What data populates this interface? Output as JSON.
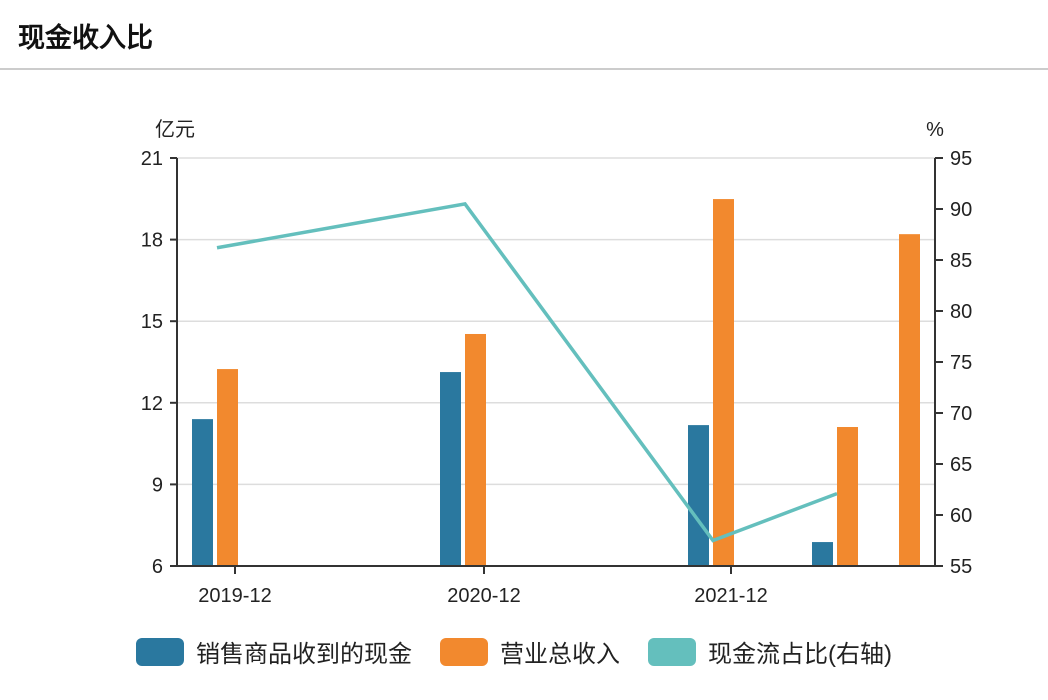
{
  "title": "现金收入比",
  "chart_data": {
    "type": "bar",
    "title": "现金收入比",
    "categories": [
      "2019-12",
      "2020-12",
      "2021-12",
      "",
      ""
    ],
    "left_axis": {
      "label": "亿元",
      "range": [
        6,
        21
      ],
      "ticks": [
        6,
        9,
        12,
        15,
        18,
        21
      ]
    },
    "right_axis": {
      "label": "%",
      "range": [
        55,
        95
      ],
      "ticks": [
        55,
        60,
        65,
        70,
        75,
        80,
        85,
        90,
        95
      ]
    },
    "series": [
      {
        "name": "销售商品收到的现金",
        "type": "bar",
        "axis": "left",
        "color": "#2a789f",
        "values": [
          11.4,
          13.13,
          11.18,
          6.88,
          null
        ]
      },
      {
        "name": "营业总收入",
        "type": "bar",
        "axis": "left",
        "color": "#f2892e",
        "values": [
          13.24,
          14.53,
          19.49,
          11.11,
          18.2
        ]
      },
      {
        "name": "现金流占比(右轴)",
        "type": "line",
        "axis": "right",
        "color": "#64bfbd",
        "values": [
          86.2,
          90.5,
          57.5,
          62.1,
          null
        ]
      }
    ],
    "grid": true,
    "legend": "bottom"
  }
}
